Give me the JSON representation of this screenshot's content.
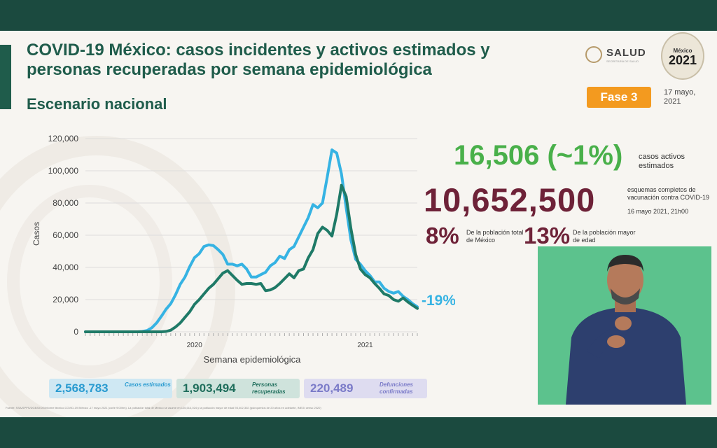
{
  "header": {
    "title": "COVID-19 México: casos incidentes y activos estimados y personas recuperadas por semana epidemiológica",
    "subtitle": "Escenario nacional",
    "logo_text": "SALUD",
    "logo_subtext": "SECRETARÍA DE SALUD",
    "emblem_top": "México",
    "emblem_year": "2021",
    "phase_badge": "Fase 3",
    "date": "17 mayo, 2021"
  },
  "kpis": {
    "active_estimated": "16,506 (~1%)",
    "active_estimated_label": "casos activos estimados",
    "vaccination": "10,652,500",
    "vaccination_label": "esquemas completos de vacunación contra COVID-19",
    "vaccination_date": "16 mayo 2021, 21h00",
    "pct_total": "8%",
    "pct_total_label": "De la población total de México",
    "pct_adults": "13%",
    "pct_adults_label": "De la población mayor de edad"
  },
  "totals": {
    "estimated": "2,568,783",
    "estimated_label": "Casos estimados",
    "recovered": "1,903,494",
    "recovered_label": "Personas recuperadas",
    "deaths": "220,489",
    "deaths_label": "Defunciones confirmadas"
  },
  "footnote": "Fuente: SSA/SPPS/DGE/DIOE/informe técnico.COVID-19 /México -17 mayo 2021 (corte 9:00hrs). La población total de México se asume en 126,014,024 y la población mayor de edad 93,402,302 (quinquenios de 20 años en adelante, INEGI censo 2020)",
  "colors": {
    "incident": "#36b3e3",
    "recovered": "#1f7a67",
    "phase": "#f39a1f",
    "active": "#49b04a",
    "vaccination": "#6e2238",
    "header_green": "#1f5c4b"
  },
  "chart_data": {
    "type": "line",
    "xlabel": "Semana epidemiológica",
    "ylabel": "Casos",
    "ylim": [
      0,
      120000
    ],
    "yticks": [
      "0",
      "20,000",
      "40,000",
      "60,000",
      "80,000",
      "100,000",
      "120,000"
    ],
    "x_year_labels": [
      {
        "label": "2020",
        "week": 23
      },
      {
        "label": "2021",
        "week": 59
      }
    ],
    "change_annotation": "-19%",
    "series": [
      {
        "values": [
          0,
          0,
          0,
          0,
          0,
          0,
          0,
          0,
          0,
          0,
          0,
          0,
          200,
          800,
          2500,
          5500,
          9500,
          14000,
          17500,
          23000,
          29500,
          34000,
          40500,
          46000,
          48500,
          53000,
          54000,
          53500,
          51000,
          48000,
          42000,
          42000,
          41000,
          42000,
          39000,
          34000,
          34000,
          35500,
          37000,
          41000,
          43000,
          47000,
          45500,
          51000,
          53000,
          59000,
          65000,
          71000,
          79000,
          77000,
          80000,
          96000,
          113000,
          111000,
          98000,
          77000,
          57000,
          45000,
          42000,
          38000,
          35000,
          31000,
          31000,
          27000,
          25000,
          24000,
          25000,
          22000,
          20000,
          17500,
          15500
        ]
      },
      {
        "values": [
          0,
          0,
          0,
          0,
          0,
          0,
          0,
          0,
          0,
          0,
          0,
          0,
          0,
          0,
          0,
          0,
          0,
          200,
          1000,
          3000,
          5500,
          9000,
          12500,
          17000,
          20000,
          23500,
          27000,
          29500,
          33000,
          36500,
          38000,
          35000,
          32000,
          29500,
          30000,
          30000,
          29500,
          30000,
          25500,
          26000,
          27500,
          30000,
          33000,
          36000,
          33500,
          38000,
          39000,
          46000,
          51000,
          61000,
          65000,
          63000,
          59500,
          73000,
          91000,
          84000,
          64000,
          48000,
          39000,
          35500,
          33500,
          30000,
          27000,
          23500,
          22500,
          20000,
          19000,
          21000,
          18500,
          16500,
          14500
        ]
      }
    ]
  }
}
